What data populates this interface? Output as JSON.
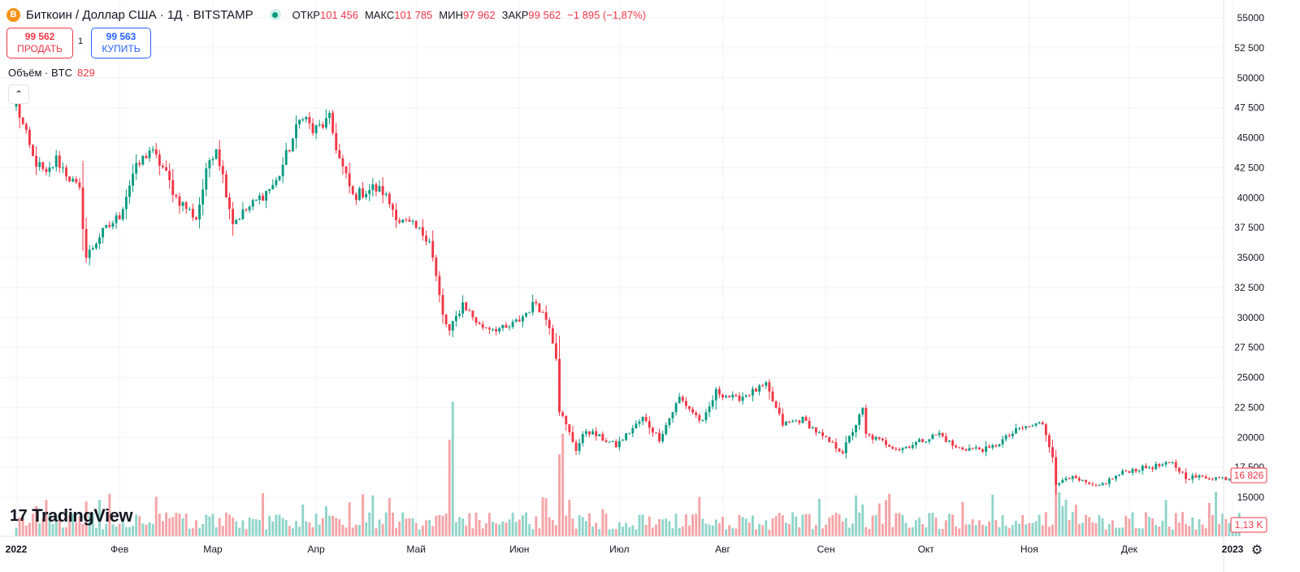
{
  "header": {
    "coin_icon": "B",
    "symbol_title": "Биткоин / Доллар США · 1Д · BITSTAMP",
    "open_label": "ОТКР",
    "open_value": "101 456",
    "high_label": "МАКС",
    "high_value": "101 785",
    "low_label": "МИН",
    "low_value": "97 962",
    "close_label": "ЗАКР",
    "close_value": "99 562",
    "change_value": "−1 895 (−1,87%)"
  },
  "trade": {
    "sell_price": "99 562",
    "sell_label": "ПРОДАТЬ",
    "spread": "1",
    "buy_price": "99 563",
    "buy_label": "КУПИТЬ"
  },
  "volume_legend": {
    "label": "Объём · BTC",
    "value": "829"
  },
  "collapse_icon": "chevron-up-icon",
  "brand": {
    "mark": "17",
    "name": "TradingView"
  },
  "settings_icon": "gear-icon",
  "colors": {
    "up": "#089981",
    "down": "#f23645",
    "up_volume": "#8fd4c9",
    "down_volume": "#f5a3a6",
    "grid": "#f0f3fa",
    "text": "#131722"
  },
  "chart_data": {
    "type": "candlestick",
    "interval": "1D",
    "exchange": "BITSTAMP",
    "ylim": [
      13000,
      56000
    ],
    "y_ticks": [
      15000,
      17500,
      20000,
      22500,
      25000,
      27500,
      30000,
      32500,
      35000,
      37500,
      40000,
      42500,
      45000,
      47500,
      50000,
      52500,
      55000
    ],
    "y_tick_labels": [
      "15000",
      "17 500",
      "20000",
      "22 500",
      "25000",
      "27 500",
      "30000",
      "32 500",
      "35000",
      "37 500",
      "40000",
      "42 500",
      "45000",
      "47 500",
      "50000",
      "52 500",
      "55000"
    ],
    "x_labels": [
      "2022",
      "Фев",
      "Мар",
      "Апр",
      "Май",
      "Июн",
      "Июл",
      "Авг",
      "Сен",
      "Окт",
      "Ноя",
      "Дек",
      "2023"
    ],
    "x_label_bold": [
      true,
      false,
      false,
      false,
      false,
      false,
      false,
      false,
      false,
      false,
      false,
      false,
      true
    ],
    "last_price_label": "16 826",
    "last_price": 16826,
    "last_volume_label": "1,13 K",
    "grid": true,
    "anchors": [
      [
        "2022-01-01",
        47800
      ],
      [
        "2022-01-06",
        43300
      ],
      [
        "2022-01-10",
        41800
      ],
      [
        "2022-01-13",
        43200
      ],
      [
        "2022-01-20",
        40500
      ],
      [
        "2022-01-22",
        35000
      ],
      [
        "2022-01-26",
        36800
      ],
      [
        "2022-02-01",
        38500
      ],
      [
        "2022-02-05",
        42000
      ],
      [
        "2022-02-10",
        44000
      ],
      [
        "2022-02-14",
        42500
      ],
      [
        "2022-02-18",
        40000
      ],
      [
        "2022-02-24",
        38300
      ],
      [
        "2022-02-28",
        43200
      ],
      [
        "2022-03-02",
        44300
      ],
      [
        "2022-03-07",
        38000
      ],
      [
        "2022-03-14",
        39700
      ],
      [
        "2022-03-20",
        41300
      ],
      [
        "2022-03-28",
        47100
      ],
      [
        "2022-03-31",
        45500
      ],
      [
        "2022-04-05",
        46500
      ],
      [
        "2022-04-08",
        43200
      ],
      [
        "2022-04-12",
        40100
      ],
      [
        "2022-04-18",
        40800
      ],
      [
        "2022-04-21",
        40500
      ],
      [
        "2022-04-26",
        38100
      ],
      [
        "2022-04-30",
        37600
      ],
      [
        "2022-05-05",
        36600
      ],
      [
        "2022-05-09",
        30100
      ],
      [
        "2022-05-11",
        28800
      ],
      [
        "2022-05-15",
        31200
      ],
      [
        "2022-05-20",
        29300
      ],
      [
        "2022-05-28",
        29000
      ],
      [
        "2022-06-01",
        29800
      ],
      [
        "2022-06-06",
        31300
      ],
      [
        "2022-06-10",
        29400
      ],
      [
        "2022-06-12",
        26800
      ],
      [
        "2022-06-13",
        22300
      ],
      [
        "2022-06-18",
        19000
      ],
      [
        "2022-06-21",
        20600
      ],
      [
        "2022-06-30",
        19300
      ],
      [
        "2022-07-08",
        21600
      ],
      [
        "2022-07-13",
        19900
      ],
      [
        "2022-07-19",
        23300
      ],
      [
        "2022-07-26",
        21200
      ],
      [
        "2022-07-30",
        23800
      ],
      [
        "2022-08-05",
        23200
      ],
      [
        "2022-08-14",
        24300
      ],
      [
        "2022-08-19",
        21100
      ],
      [
        "2022-08-25",
        21500
      ],
      [
        "2022-08-31",
        20000
      ],
      [
        "2022-09-06",
        18800
      ],
      [
        "2022-09-12",
        22300
      ],
      [
        "2022-09-13",
        20200
      ],
      [
        "2022-09-19",
        19500
      ],
      [
        "2022-09-23",
        19000
      ],
      [
        "2022-10-05",
        20300
      ],
      [
        "2022-10-10",
        19100
      ],
      [
        "2022-10-20",
        19000
      ],
      [
        "2022-10-29",
        20700
      ],
      [
        "2022-11-05",
        21200
      ],
      [
        "2022-11-08",
        18500
      ],
      [
        "2022-11-09",
        15900
      ],
      [
        "2022-11-12",
        16800
      ],
      [
        "2022-11-21",
        15800
      ],
      [
        "2022-11-30",
        17200
      ],
      [
        "2022-12-14",
        17800
      ],
      [
        "2022-12-18",
        16700
      ],
      [
        "2022-12-31",
        16600
      ],
      [
        "2023-01-03",
        16826
      ]
    ]
  }
}
